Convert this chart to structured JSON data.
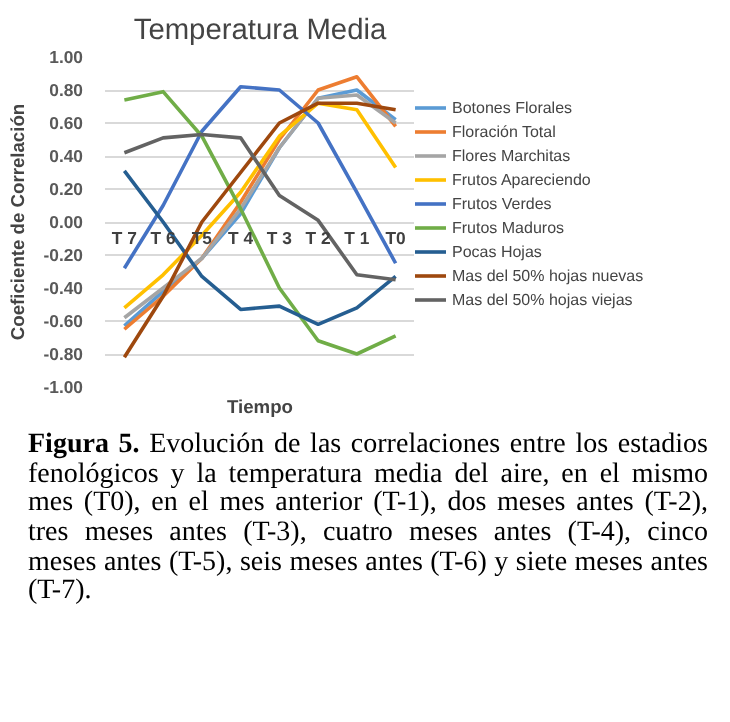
{
  "chart_data": {
    "type": "line",
    "title": "Temperatura Media",
    "xlabel": "Tiempo",
    "ylabel": "Coeficiente de Correlación",
    "categories": [
      "T 7",
      "T 6",
      "T5",
      "T 4",
      "T 3",
      "T 2",
      "T 1",
      "T0"
    ],
    "series": [
      {
        "name": "Botones Florales",
        "color": "#5b9bd5",
        "values": [
          -0.63,
          -0.42,
          -0.22,
          0.05,
          0.45,
          0.75,
          0.8,
          0.62
        ]
      },
      {
        "name": "Floración Total",
        "color": "#ed7d31",
        "values": [
          -0.65,
          -0.45,
          -0.22,
          0.12,
          0.5,
          0.8,
          0.88,
          0.58
        ]
      },
      {
        "name": "Flores Marchitas",
        "color": "#a5a5a5",
        "values": [
          -0.58,
          -0.4,
          -0.22,
          0.08,
          0.45,
          0.75,
          0.77,
          0.6
        ]
      },
      {
        "name": "Frutos Apareciendo",
        "color": "#ffc000",
        "values": [
          -0.52,
          -0.32,
          -0.08,
          0.18,
          0.52,
          0.72,
          0.68,
          0.33
        ]
      },
      {
        "name": "Frutos Verdes",
        "color": "#4472c4",
        "values": [
          -0.28,
          0.1,
          0.55,
          0.82,
          0.8,
          0.6,
          0.18,
          -0.25
        ]
      },
      {
        "name": "Frutos Maduros",
        "color": "#70ad47",
        "values": [
          0.74,
          0.79,
          0.52,
          0.08,
          -0.4,
          -0.72,
          -0.8,
          -0.69
        ]
      },
      {
        "name": "Pocas Hojas",
        "color": "#255e91",
        "values": [
          0.31,
          0.0,
          -0.33,
          -0.53,
          -0.51,
          -0.62,
          -0.52,
          -0.33
        ]
      },
      {
        "name": "Mas del 50% hojas nuevas",
        "color": "#9e480e",
        "values": [
          -0.82,
          -0.45,
          0.0,
          0.3,
          0.6,
          0.72,
          0.72,
          0.68
        ]
      },
      {
        "name": "Mas del 50% hojas viejas",
        "color": "#636363",
        "values": [
          0.42,
          0.51,
          0.53,
          0.51,
          0.16,
          0.01,
          -0.32,
          -0.35
        ]
      }
    ],
    "ylim": [
      -1,
      1
    ],
    "yticks": [
      {
        "value": -1,
        "label": "-1.00"
      },
      {
        "value": -0.8,
        "label": "-0.80"
      },
      {
        "value": -0.6,
        "label": "-0.60"
      },
      {
        "value": -0.4,
        "label": "-0.40"
      },
      {
        "value": -0.2,
        "label": "-0.20"
      },
      {
        "value": 0,
        "label": "0.00"
      },
      {
        "value": 0.2,
        "label": "0.20"
      },
      {
        "value": 0.4,
        "label": "0.40"
      },
      {
        "value": 0.6,
        "label": "0.60"
      },
      {
        "value": 0.8,
        "label": "0.80"
      },
      {
        "value": 1,
        "label": "1.00"
      }
    ],
    "grid": "y",
    "legend": "right",
    "marker": "none",
    "line_style": "solid",
    "annotations": [
      "Figura 5.",
      "Evolución de las correlaciones entre los estadios fenológicos y la temperatura media del aire, en el mismo mes (T0), en el mes anterior (T-1), dos meses antes (T-2), tres meses antes (T-3), cuatro meses antes (T-4), cinco meses antes (T-5), seis meses antes (T-6) y siete meses antes (T-7)."
    ]
  }
}
